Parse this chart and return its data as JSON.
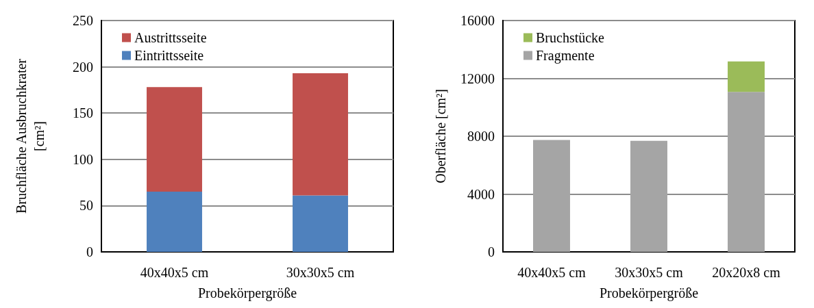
{
  "chart_data": [
    {
      "type": "bar",
      "stacked": true,
      "categories": [
        "40x40x5 cm",
        "30x30x5 cm"
      ],
      "xlabel": "Probekörpergröße",
      "ylabel": "Bruchfläche Ausbruchkrater\n[cm²]",
      "ylim": [
        0,
        250
      ],
      "yticks": [
        0,
        50,
        100,
        150,
        200,
        250
      ],
      "grid": "y",
      "legend": "top left",
      "series": [
        {
          "name": "Eintrittsseite",
          "color": "#4f81bd",
          "values": [
            65,
            61
          ]
        },
        {
          "name": "Austrittsseite",
          "color": "#c0504d",
          "values": [
            113,
            132
          ]
        }
      ]
    },
    {
      "type": "bar",
      "stacked": true,
      "categories": [
        "40x40x5 cm",
        "30x30x5 cm",
        "20x20x8 cm"
      ],
      "xlabel": "Probekörpergröße",
      "ylabel": "Oberfläche [cm²]",
      "ylim": [
        0,
        16000
      ],
      "yticks": [
        0,
        4000,
        8000,
        12000,
        16000
      ],
      "grid": "y",
      "legend": "top left",
      "series": [
        {
          "name": "Fragmente",
          "color": "#a5a5a5",
          "values": [
            7740,
            7680,
            11060
          ]
        },
        {
          "name": "Bruchstücke",
          "color": "#9bbb59",
          "values": [
            null,
            null,
            2110
          ]
        }
      ]
    }
  ]
}
